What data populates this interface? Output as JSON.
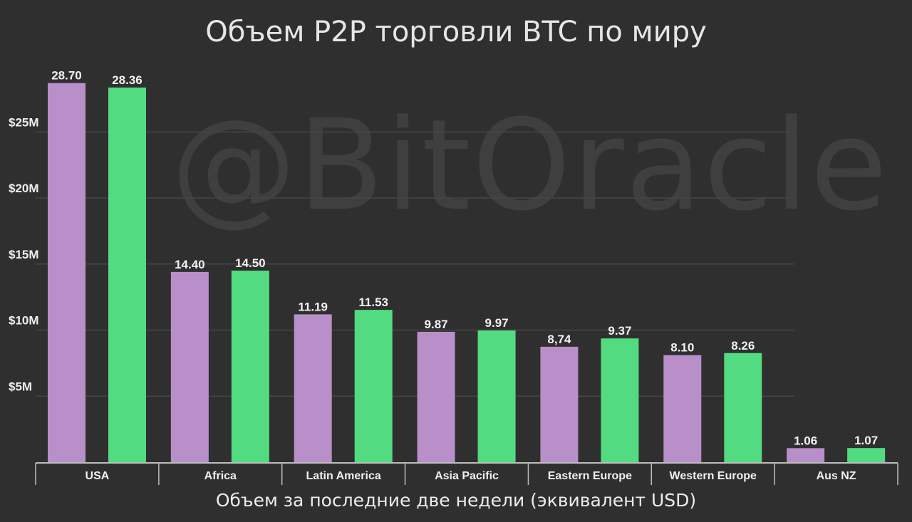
{
  "chart_data": {
    "type": "bar",
    "title": "Объем P2P торговли BTC по миру",
    "xlabel": "Объем за последние две недели (эквивалент USD)",
    "ylabel": "",
    "watermark": "@BitOracle",
    "categories": [
      "USA",
      "Africa",
      "Latin America",
      "Asia Pacific",
      "Eastern Europe",
      "Western Europe",
      "Aus NZ"
    ],
    "series": [
      {
        "color": "#b98fc9",
        "values": [
          28.7,
          14.4,
          11.19,
          9.87,
          8.74,
          8.1,
          1.06
        ],
        "labels": [
          "28.70",
          "14.40",
          "11.19",
          "9.87",
          "8,74",
          "8.10",
          "1.06"
        ]
      },
      {
        "color": "#52db80",
        "values": [
          28.36,
          14.5,
          11.53,
          9.97,
          9.37,
          8.26,
          1.07
        ],
        "labels": [
          "28.36",
          "14.50",
          "11.53",
          "9.97",
          "9.37",
          "8.26",
          "1.07"
        ]
      }
    ],
    "yticks": [
      {
        "value": 5,
        "label": "$5M"
      },
      {
        "value": 10,
        "label": "$10M"
      },
      {
        "value": 15,
        "label": "$15M"
      },
      {
        "value": 20,
        "label": "$20M"
      },
      {
        "value": 25,
        "label": "$25M"
      }
    ],
    "ylim": [
      0,
      30
    ],
    "grid": true,
    "legend": "none"
  }
}
